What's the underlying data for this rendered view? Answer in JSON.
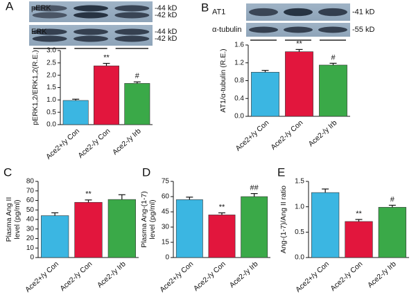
{
  "chart_data": [
    {
      "type": "bar",
      "panel": "A",
      "ylabel": [
        "pERK1,2/ERK1,2(R.E.)"
      ],
      "categories": [
        "Ace2+/y Con",
        "Ace2-/y Con",
        "Ace2-/y Irb"
      ],
      "values": [
        0.98,
        2.38,
        1.67
      ],
      "errors": [
        0.05,
        0.1,
        0.06
      ],
      "annotations": [
        null,
        "**",
        "#"
      ],
      "colors": [
        "#3bb6e2",
        "#e2163d",
        "#3aa948"
      ],
      "ylim": [
        0,
        3
      ],
      "yticks": [
        {
          "value": 0,
          "label": "0.0"
        },
        0.5,
        {
          "value": 1,
          "label": "1.0"
        },
        1.5,
        {
          "value": 2,
          "label": "2.0"
        },
        2.5,
        {
          "value": 3,
          "label": "3.0"
        }
      ],
      "blots": [
        {
          "label": "pERK",
          "markers": [
            "-44 kD",
            "-42 kD"
          ]
        },
        {
          "label": "ERK",
          "markers": [
            "-44 kD",
            "-42 kD"
          ]
        }
      ]
    },
    {
      "type": "bar",
      "panel": "B",
      "ylabel": [
        "AT1/α-tubulin (R.E.)"
      ],
      "categories": [
        "Ace2+/y Con",
        "Ace2-/y Con",
        "Ace2-/y Irb"
      ],
      "values": [
        0.99,
        1.45,
        1.15
      ],
      "errors": [
        0.04,
        0.05,
        0.04
      ],
      "annotations": [
        null,
        "**",
        "#"
      ],
      "colors": [
        "#3bb6e2",
        "#e2163d",
        "#3aa948"
      ],
      "ylim": [
        0,
        1.6
      ],
      "yticks": [
        {
          "value": 0,
          "label": "0.0"
        },
        0.4,
        0.8,
        1.2,
        1.6
      ],
      "blots": [
        {
          "label": "AT1",
          "markers": [
            "-41 kD"
          ]
        },
        {
          "label": "α-tubulin",
          "markers": [
            "-55 kD"
          ]
        }
      ]
    },
    {
      "type": "bar",
      "panel": "C",
      "ylabel": [
        "Plasma Ang II",
        "level (pg/ml)"
      ],
      "categories": [
        "Ace2+/y Con",
        "Ace2-/y Con",
        "Ace2-/y Irb"
      ],
      "values": [
        44,
        58,
        61
      ],
      "errors": [
        3,
        2.5,
        5
      ],
      "annotations": [
        null,
        "**",
        null
      ],
      "colors": [
        "#3bb6e2",
        "#e2163d",
        "#3aa948"
      ],
      "ylim": [
        0,
        80
      ],
      "yticks": [
        0,
        10,
        20,
        30,
        40,
        50,
        60,
        70,
        80
      ]
    },
    {
      "type": "bar",
      "panel": "D",
      "ylabel": [
        "Plasma Ang-(1-7)",
        "level (pg/ml)"
      ],
      "categories": [
        "Ace2+/y Con",
        "Ace2-/y Con",
        "Ace2-/y Irb"
      ],
      "values": [
        57,
        42,
        60
      ],
      "errors": [
        2.5,
        2,
        3
      ],
      "annotations": [
        null,
        "**",
        "##"
      ],
      "colors": [
        "#3bb6e2",
        "#e2163d",
        "#3aa948"
      ],
      "ylim": [
        0,
        75
      ],
      "yticks": [
        0,
        15,
        30,
        45,
        60,
        75
      ]
    },
    {
      "type": "bar",
      "panel": "E",
      "ylabel": [
        "Ang-(1-7)/Ang II ratio"
      ],
      "categories": [
        "Ace2+/y Con",
        "Ace2-/y Con",
        "Ace2-/y Irb"
      ],
      "values": [
        1.28,
        0.71,
        0.99
      ],
      "errors": [
        0.07,
        0.04,
        0.04
      ],
      "annotations": [
        null,
        "**",
        "#"
      ],
      "colors": [
        "#3bb6e2",
        "#e2163d",
        "#3aa948"
      ],
      "ylim": [
        0,
        1.5
      ],
      "yticks": [
        {
          "value": 0,
          "label": "0.0"
        },
        0.5,
        {
          "value": 1,
          "label": "1.0"
        },
        1.5
      ]
    }
  ]
}
